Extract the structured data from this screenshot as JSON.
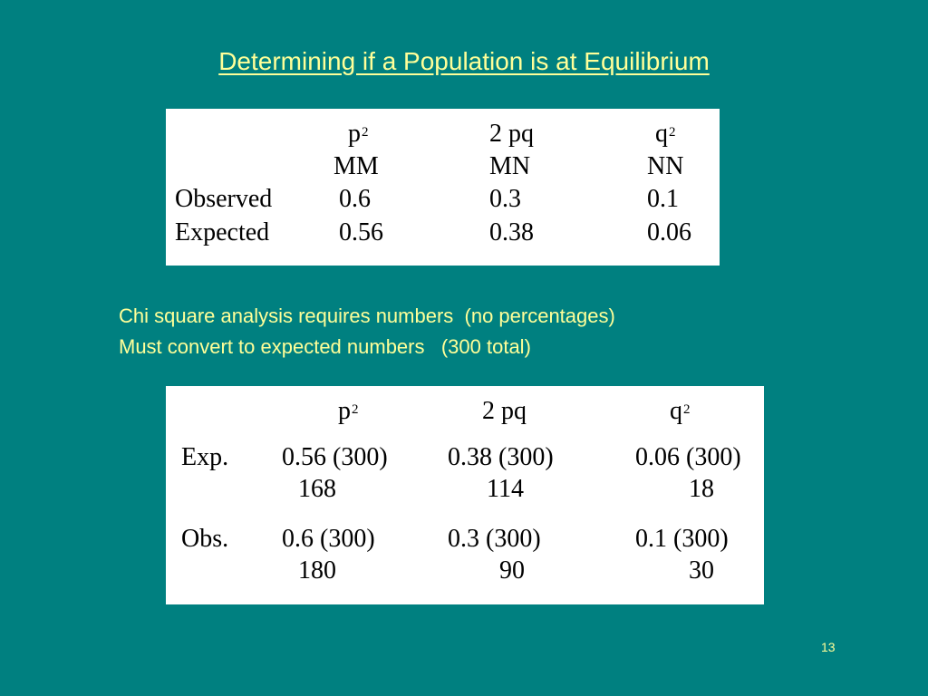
{
  "title": "Determining if a Population is at Equilibrium",
  "table1": {
    "headers": [
      {
        "base": "p",
        "sup": "2"
      },
      {
        "base": "2 pq",
        "sup": ""
      },
      {
        "base": "q",
        "sup": "2"
      }
    ],
    "genotypes": [
      "MM",
      "MN",
      "NN"
    ],
    "rows": [
      {
        "label": "Observed",
        "values": [
          "0.6",
          "0.3",
          "0.1"
        ]
      },
      {
        "label": "Expected",
        "values": [
          "0.56",
          "0.38",
          "0.06"
        ]
      }
    ]
  },
  "notes": [
    "Chi square analysis requires numbers  (no percentages)",
    "Must convert to expected numbers   (300 total)"
  ],
  "table2": {
    "headers": [
      {
        "base": "p",
        "sup": "2"
      },
      {
        "base": "2 pq",
        "sup": ""
      },
      {
        "base": "q",
        "sup": "2"
      }
    ],
    "rows": [
      {
        "label": "Exp.",
        "formulas": [
          "0.56 (300)",
          "0.38 (300)",
          "0.06 (300)"
        ],
        "results": [
          "168",
          "114",
          "18"
        ]
      },
      {
        "label": "Obs.",
        "formulas": [
          "0.6 (300)",
          "0.3 (300)",
          "0.1 (300)"
        ],
        "results": [
          "180",
          "90",
          "30"
        ]
      }
    ]
  },
  "slide_number": "13",
  "colors": {
    "background": "#008080",
    "text_accent": "#ffff99",
    "table_background": "#ffffff"
  }
}
